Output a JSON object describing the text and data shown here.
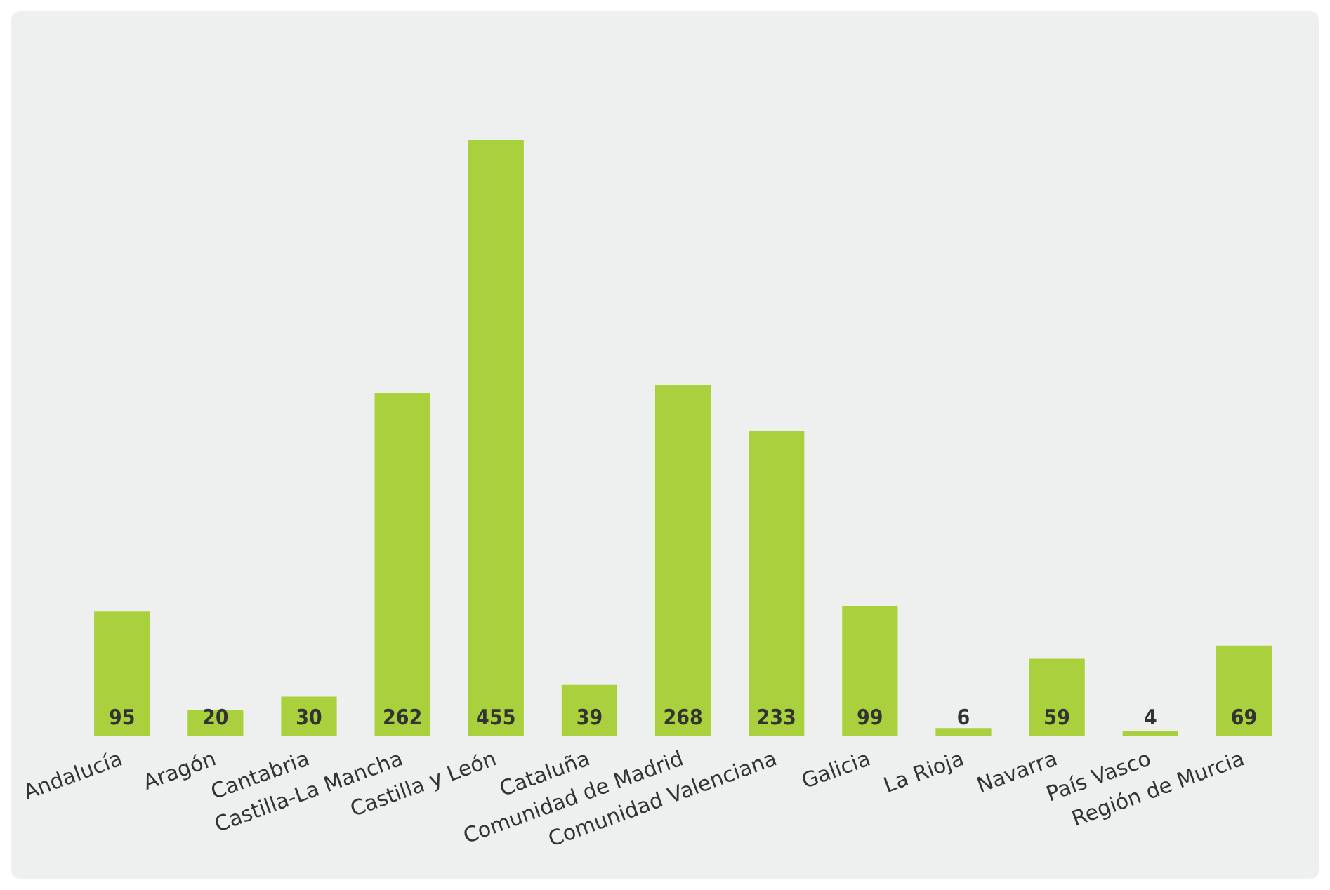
{
  "chart_data": {
    "type": "bar",
    "categories": [
      "Andalucía",
      "Aragón",
      "Cantabria",
      "Castilla-La Mancha",
      "Castilla y León",
      "Cataluña",
      "Comunidad de Madrid",
      "Comunidad Valenciana",
      "Galicia",
      "La Rioja",
      "Navarra",
      "País Vasco",
      "Región de Murcia"
    ],
    "values": [
      95,
      20,
      30,
      262,
      455,
      39,
      268,
      233,
      99,
      6,
      59,
      4,
      69
    ],
    "color": "#a9d13d",
    "data_labels": true,
    "grid": false,
    "legend": false
  }
}
